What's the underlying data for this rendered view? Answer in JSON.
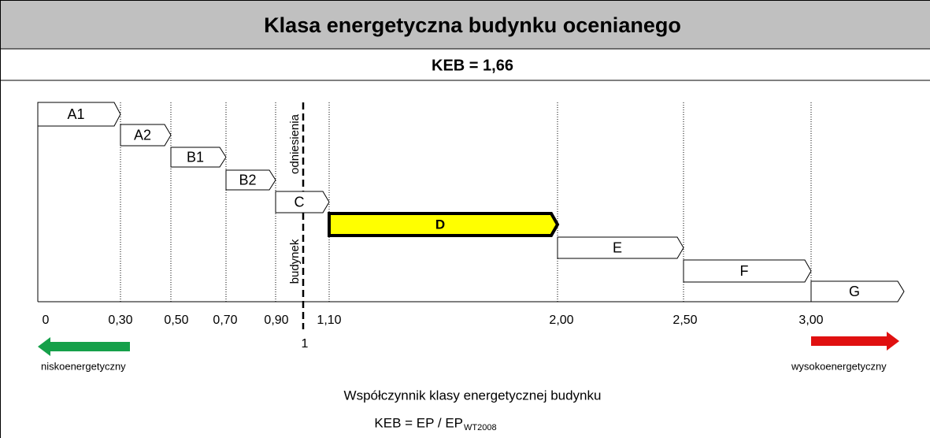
{
  "title": "Klasa  energetyczna  budynku  ocenianego",
  "keb": "KEB = 1,66",
  "classes": [
    "A1",
    "A2",
    "B1",
    "B2",
    "C",
    "D",
    "E",
    "F",
    "G"
  ],
  "ticks": [
    "0",
    "0,30",
    "0,50",
    "0,70",
    "0,90",
    "1,10",
    "2,00",
    "2,50",
    "3,00"
  ],
  "reference_tick": "1",
  "reference_labels": [
    "odniesienia",
    "budynek"
  ],
  "low_label": "niskoenergetyczny",
  "high_label": "wysokoenergetyczny",
  "footer": {
    "line1": "Współczynnik  klasy energetycznej budynku",
    "formula": "KEB = EP / EP",
    "formula_sub": "WT2008"
  }
}
